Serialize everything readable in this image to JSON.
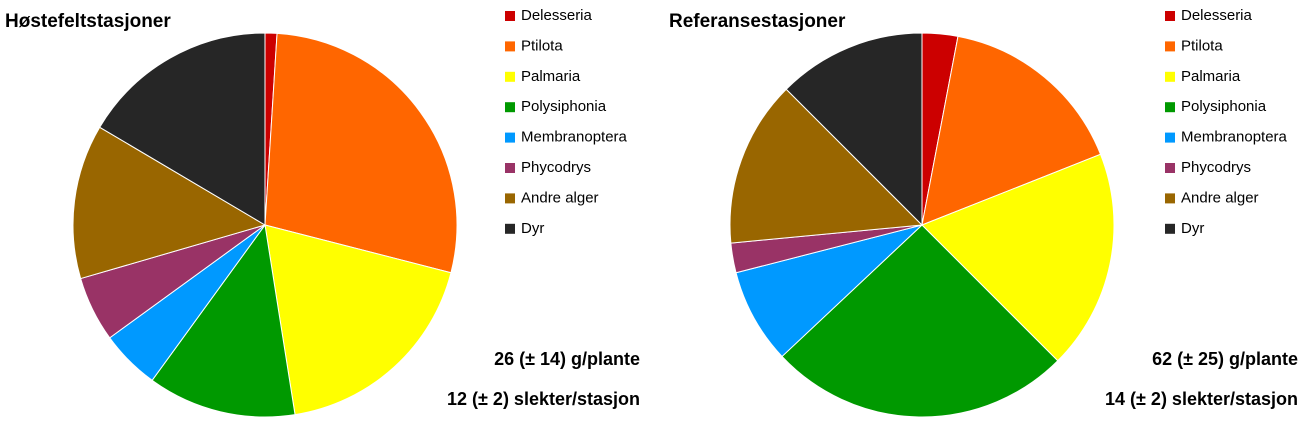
{
  "chart_data": [
    {
      "type": "pie",
      "title": "Høstefeltstasjoner",
      "categories": [
        "Delesseria",
        "Ptilota",
        "Palmaria",
        "Polysiphonia",
        "Membranoptera",
        "Phycodrys",
        "Andre alger",
        "Dyr"
      ],
      "values": [
        1,
        28,
        18.5,
        12.5,
        5,
        5.5,
        13,
        16.5
      ],
      "colors": [
        "#cc0000",
        "#ff6600",
        "#ffff00",
        "#009900",
        "#0099ff",
        "#993366",
        "#996600",
        "#262626"
      ],
      "annotations": [
        "26 (± 14) g/plante",
        "12 (± 2) slekter/stasjon"
      ]
    },
    {
      "type": "pie",
      "title": "Referansestasjoner",
      "categories": [
        "Delesseria",
        "Ptilota",
        "Palmaria",
        "Polysiphonia",
        "Membranoptera",
        "Phycodrys",
        "Andre alger",
        "Dyr"
      ],
      "values": [
        3,
        16,
        18.5,
        25.5,
        8,
        2.5,
        14,
        12.5
      ],
      "colors": [
        "#cc0000",
        "#ff6600",
        "#ffff00",
        "#009900",
        "#0099ff",
        "#993366",
        "#996600",
        "#262626"
      ],
      "annotations": [
        "62 (± 25) g/plante",
        "14 (± 2) slekter/stasjon"
      ]
    }
  ]
}
